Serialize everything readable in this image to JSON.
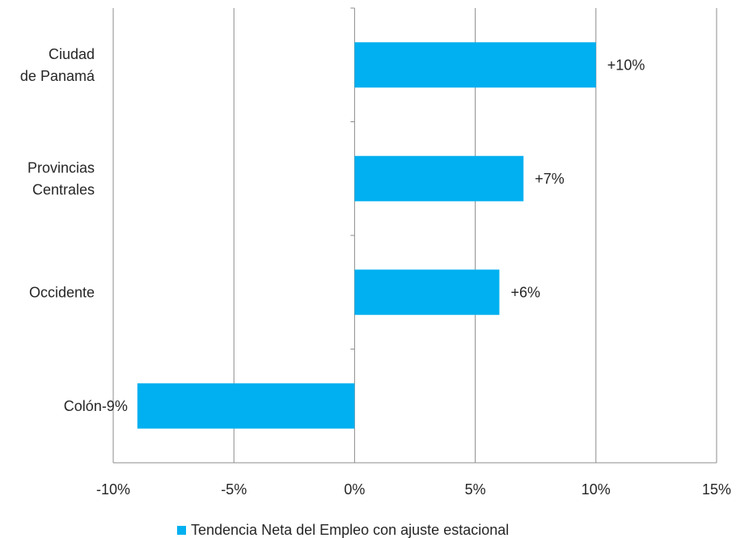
{
  "chart_data": {
    "type": "bar",
    "orientation": "horizontal",
    "title": "",
    "xlabel": "",
    "ylabel": "",
    "categories": [
      {
        "lines": [
          "Ciudad",
          "de Panamá"
        ]
      },
      {
        "lines": [
          "Provincias",
          "Centrales"
        ]
      },
      {
        "lines": [
          "Occidente"
        ]
      },
      {
        "lines": [
          "Colón"
        ]
      }
    ],
    "series": [
      {
        "name": "Tendencia Neta del Empleo con ajuste estacional",
        "color": "#00b0f0",
        "values": [
          10,
          7,
          6,
          -9
        ],
        "labels": [
          "+10%",
          "+7%",
          "+6%",
          "-9%"
        ]
      }
    ],
    "xlim": [
      -10,
      15
    ],
    "xticks": [
      {
        "value": -10,
        "label": "-10%"
      },
      {
        "value": -5,
        "label": "-5%"
      },
      {
        "value": 0,
        "label": "0%"
      },
      {
        "value": 5,
        "label": "5%"
      },
      {
        "value": 10,
        "label": "10%"
      },
      {
        "value": 15,
        "label": "15%"
      }
    ],
    "grid": true,
    "legend_position": "bottom"
  }
}
